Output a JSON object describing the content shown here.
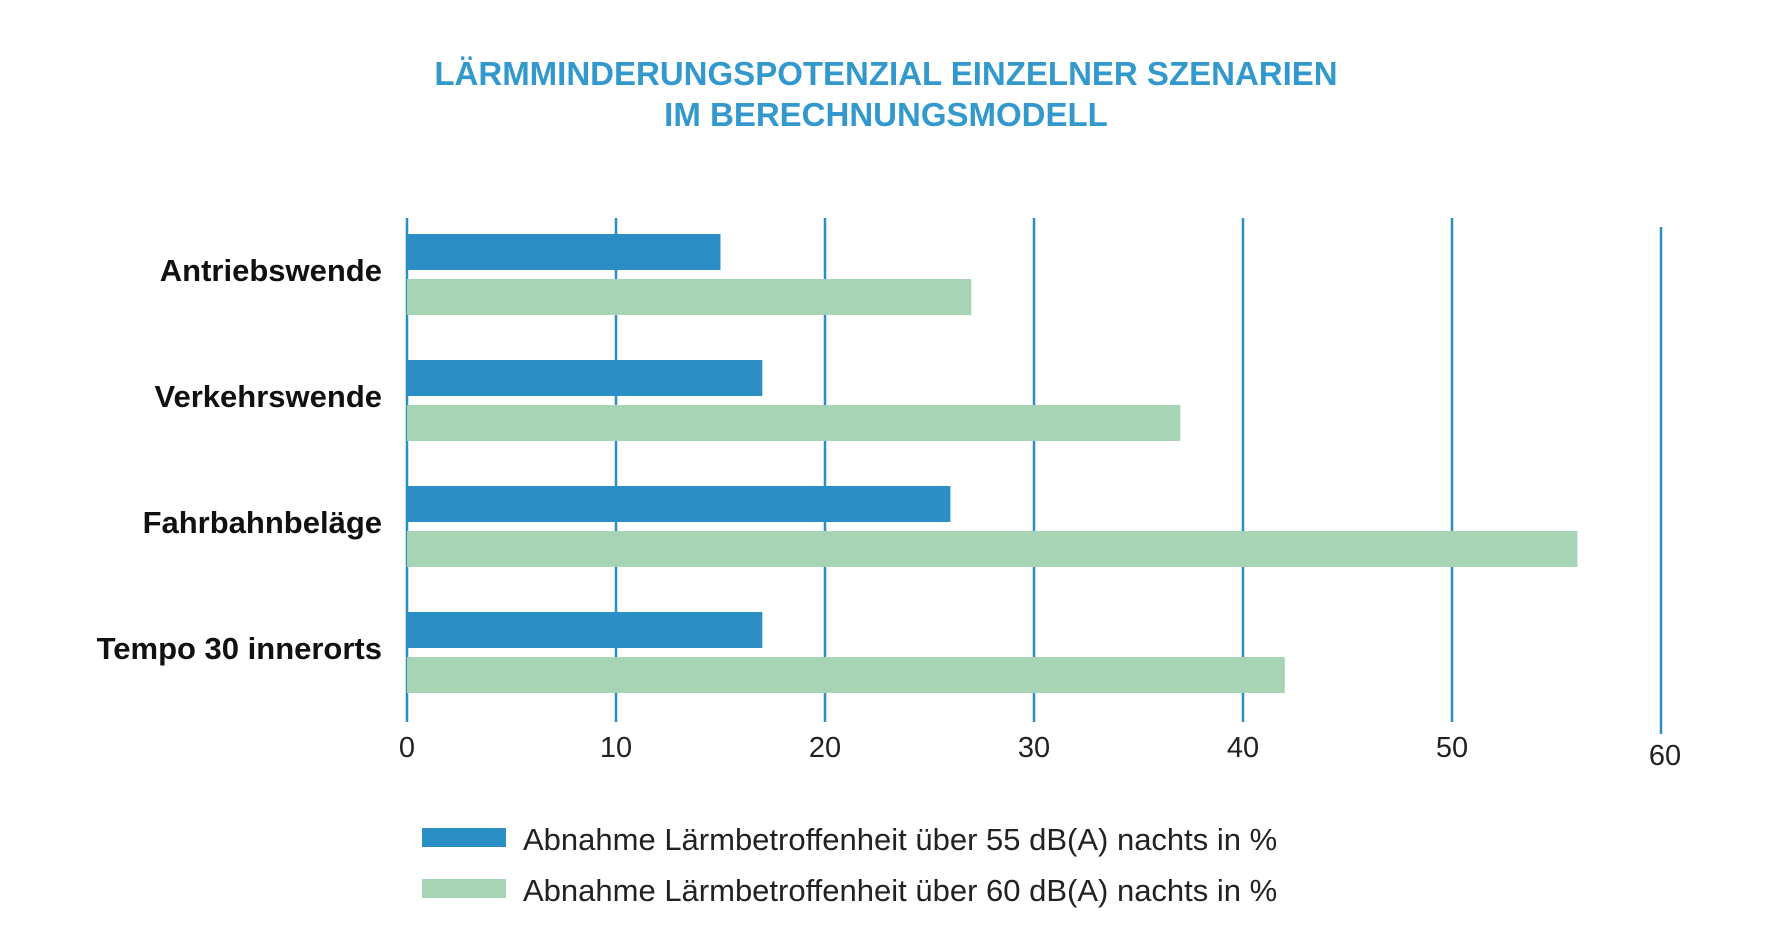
{
  "chart_data": {
    "type": "bar",
    "orientation": "horizontal",
    "title": [
      "LÄRMMINDERUNGSPOTENZIAL EINZELNER SZENARIEN",
      "IM BERECHNUNGSMODELL"
    ],
    "categories": [
      "Antriebswende",
      "Verkehrswende",
      "Fahrbahnbeläge",
      "Tempo 30 innerorts"
    ],
    "series": [
      {
        "name": "Abnahme Lärmbetroffenheit über 55 dB(A) nachts in %",
        "color": "#2b8ec4",
        "values": [
          15,
          17,
          26,
          17
        ]
      },
      {
        "name": "Abnahme Lärmbetroffenheit über 60 dB(A) nachts in %",
        "color": "#a6d4b4",
        "values": [
          27,
          37,
          56,
          42
        ]
      }
    ],
    "xticks": [
      "0",
      "10",
      "20",
      "30",
      "40",
      "50",
      "60"
    ],
    "xlim": [
      0,
      60
    ],
    "xlabel": "",
    "ylabel": "",
    "grid": "vertical",
    "legend_position": "bottom",
    "gridline_color": "#2b8ec4"
  }
}
